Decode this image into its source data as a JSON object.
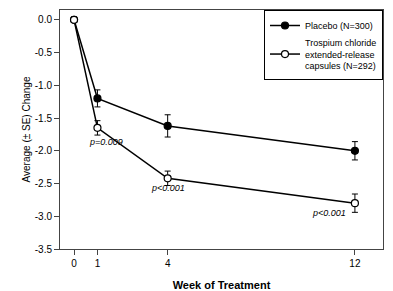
{
  "chart_data": {
    "type": "line",
    "x": [
      0,
      1,
      4,
      12
    ],
    "series": [
      {
        "name": "Placebo (N=300)",
        "color": "#000000",
        "marker": "circle",
        "line_style": "solid",
        "values": [
          0.0,
          -1.2,
          -1.62,
          -2.0
        ],
        "errors": [
          0.04,
          0.13,
          0.17,
          0.14
        ]
      },
      {
        "name": "Trospium chloride\nextended-release\ncapsules (N=292)",
        "color": "#000000",
        "marker": "circle-open",
        "line_style": "solid",
        "values": [
          0.0,
          -1.65,
          -2.42,
          -2.8
        ],
        "errors": [
          0.04,
          0.11,
          0.11,
          0.14
        ]
      }
    ],
    "xlabel": "Week of Treatment",
    "ylabel": "Average (± SE) Change",
    "xlim": [
      -0.6,
      13.2
    ],
    "xticks": [
      0,
      1,
      4,
      12
    ],
    "ylim": [
      -3.5,
      0.15
    ],
    "yticks": [
      {
        "value": 0.0,
        "label": "0.0"
      },
      -0.5,
      {
        "value": -1.0,
        "label": "-1.0"
      },
      -1.5,
      {
        "value": -2.0,
        "label": "-2.0"
      },
      -2.5,
      {
        "value": -3.0,
        "label": "-3.0"
      },
      -3.5
    ],
    "annotations": [
      {
        "text": "p=0.009",
        "x": 0.55,
        "y": -1.97
      },
      {
        "text": "p<0.001",
        "x": 3.2,
        "y": -2.68
      },
      {
        "text": "p<0.001",
        "x": 10.1,
        "y": -3.05
      }
    ],
    "grid": false,
    "legend": "upper right"
  }
}
